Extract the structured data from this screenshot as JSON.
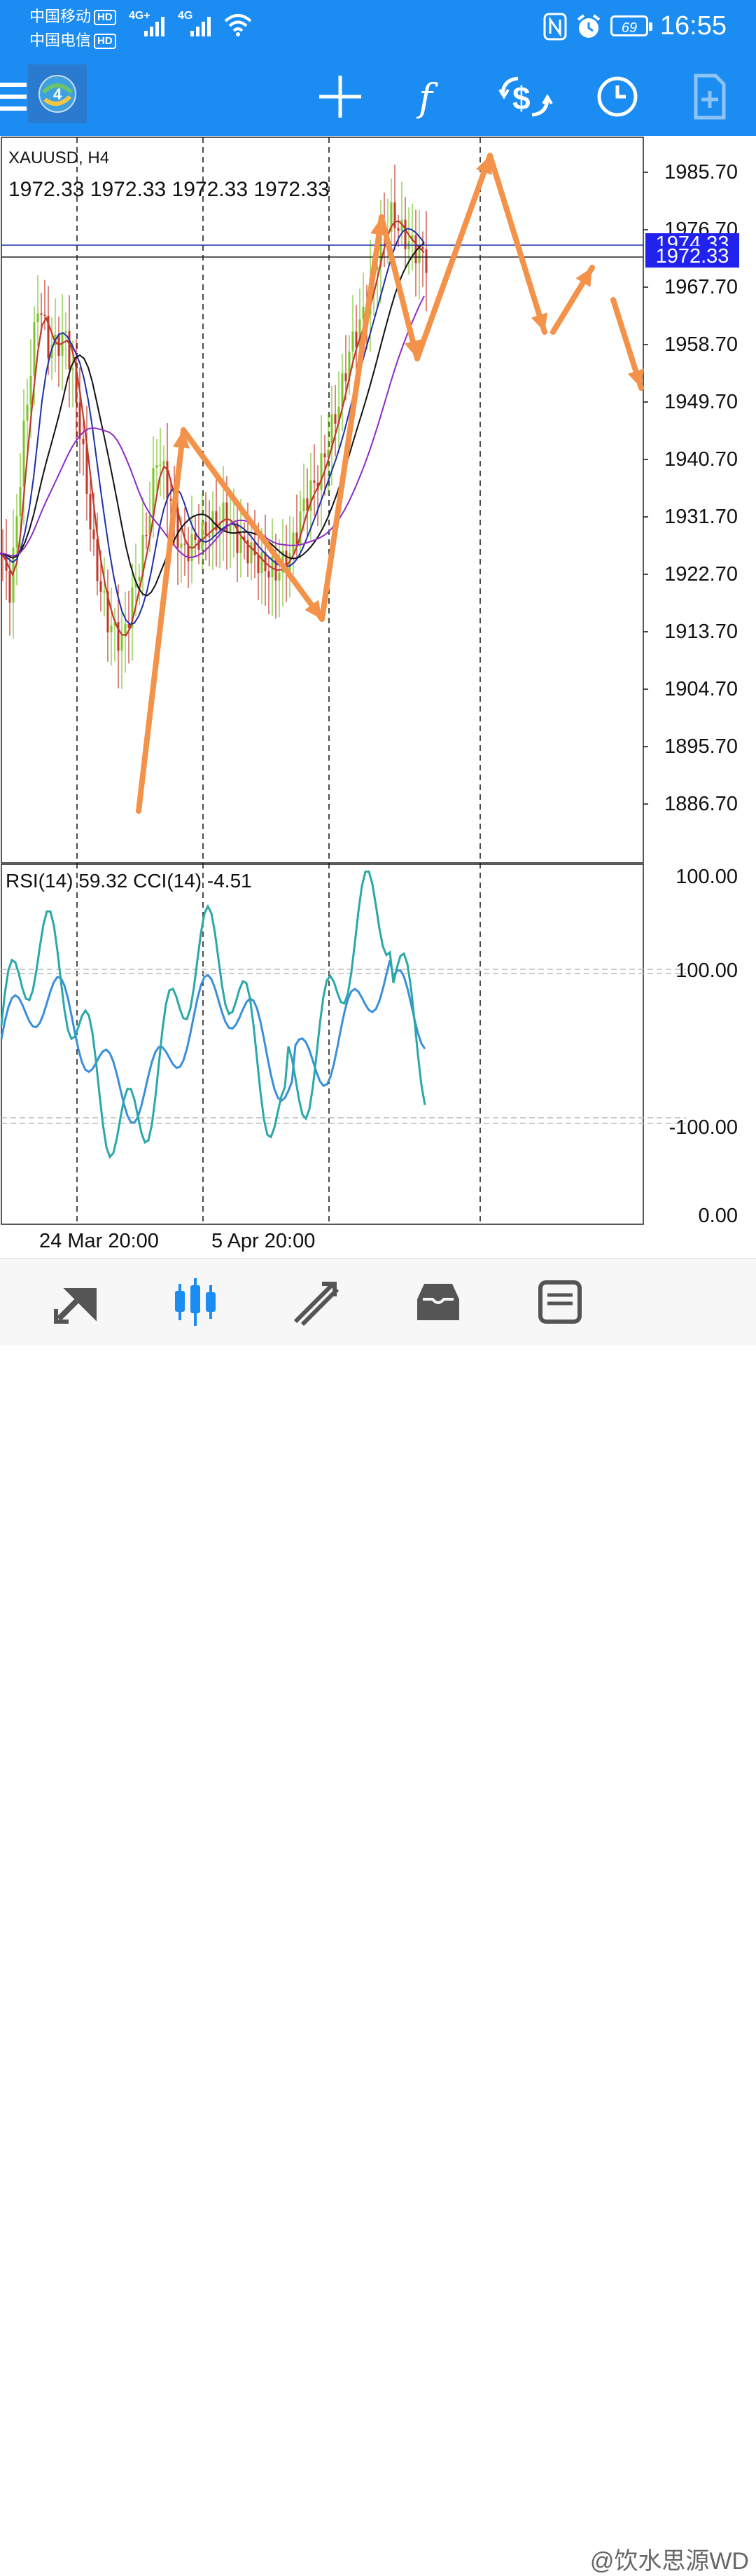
{
  "status_bar": {
    "carrier1": "中国移动",
    "carrier2": "中国电信",
    "hd": "HD",
    "net1": "4G+",
    "net2": "4G",
    "battery": "69",
    "time": "16:55"
  },
  "toolbar": {
    "icons": [
      "menu-icon",
      "mt4-logo-icon",
      "crosshair-icon",
      "indicators-icon",
      "trade-icon",
      "timeframe-icon",
      "objects-icon"
    ]
  },
  "chart": {
    "symbol": "XAUUSD, H4",
    "ohlc": "1972.33 1972.33 1972.33 1972.33",
    "price_labels": [
      "1985.70",
      "1976.70",
      "1967.70",
      "1958.70",
      "1949.70",
      "1940.70",
      "1931.70",
      "1922.70",
      "1913.70",
      "1904.70",
      "1895.70",
      "1886.70"
    ],
    "bid_tag": "1972.33",
    "ask_tag": "1974.33",
    "time_labels": [
      "24 Mar 20:00",
      "5 Apr 20:00"
    ],
    "indicator_label": "RSI(14) 59.32 CCI(14) -4.51",
    "indicator_scale": [
      "100.00",
      "100.00",
      "-100.00",
      "0.00"
    ],
    "colors": {
      "up": "#7dc62a",
      "down": "#c0392b",
      "ma_red": "#c0392b",
      "ma_blue": "#1f2fa8",
      "ma_black": "#111111",
      "ma_purple": "#8e2bc4",
      "rsi": "#3a8fd8",
      "cci": "#2aa8a8",
      "annotation": "#f39248",
      "tag": "#2222ee"
    }
  },
  "nav": {
    "icons": [
      "quotes-icon",
      "chart-icon",
      "trade-icon",
      "history-icon",
      "messages-icon"
    ]
  },
  "watermark": "@饮水思源WD"
}
